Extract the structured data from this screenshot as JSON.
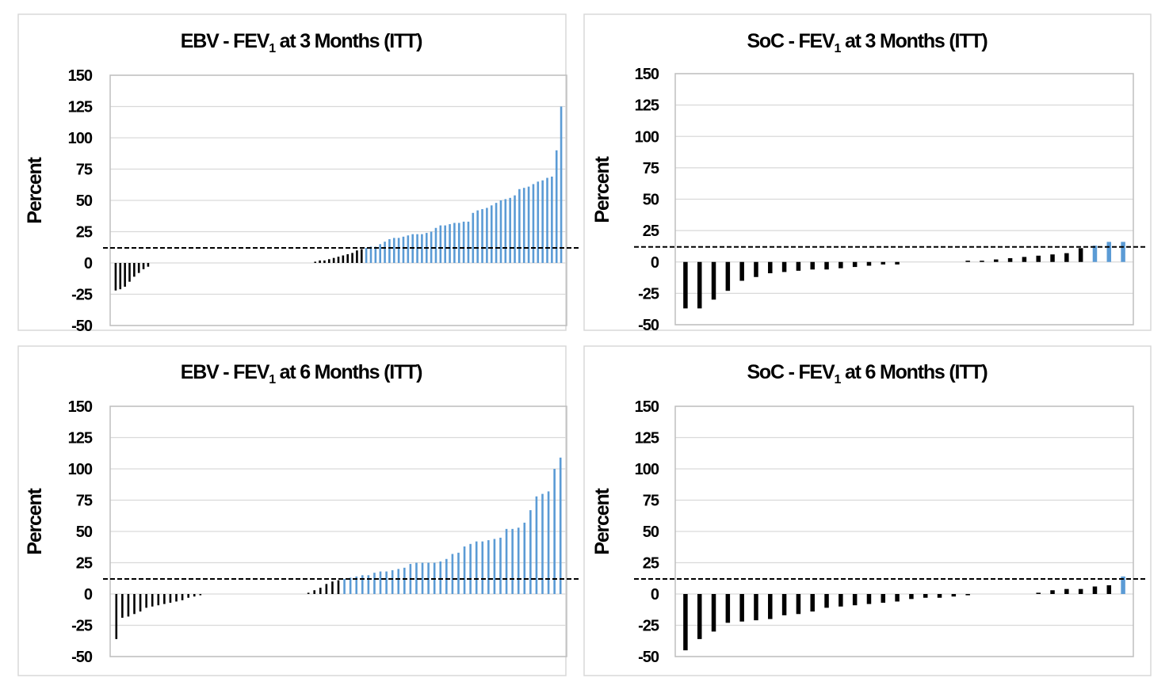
{
  "colors": {
    "responder": "#5b9bd5",
    "non_responder": "#000000",
    "grid": "#d9d9d9",
    "frame": "#bfbfbf"
  },
  "chart_data": [
    {
      "type": "bar",
      "title_main": "EBV - FEV",
      "title_sub": "1",
      "title_rest": " at 3 Months (ITT)",
      "ylabel": "Percent",
      "ylim": [
        -50,
        150
      ],
      "yticks": [
        150,
        125,
        100,
        75,
        50,
        25,
        0,
        -25,
        -50
      ],
      "threshold": 12,
      "values": [
        -22,
        -21,
        -19,
        -15,
        -11,
        -8,
        -5,
        -3,
        0,
        0,
        0,
        0,
        0,
        0,
        0,
        0,
        0,
        0,
        0,
        0,
        0,
        0,
        0,
        0,
        0,
        0,
        0,
        0,
        0,
        0,
        0,
        0,
        0,
        0,
        0,
        0,
        0,
        0,
        0,
        0,
        0,
        0,
        0,
        1,
        2,
        2,
        3,
        4,
        5,
        6,
        7,
        8,
        10,
        11,
        12,
        13,
        13,
        15,
        17,
        19,
        20,
        20,
        21,
        22,
        23,
        23,
        23,
        24,
        25,
        28,
        30,
        30,
        31,
        32,
        32,
        33,
        33,
        40,
        42,
        43,
        44,
        46,
        48,
        50,
        51,
        52,
        54,
        59,
        60,
        61,
        63,
        65,
        66,
        68,
        69,
        90,
        125
      ]
    },
    {
      "type": "bar",
      "title_main": "SoC - FEV",
      "title_sub": "1",
      "title_rest": " at 3 Months (ITT)",
      "ylabel": "Percent",
      "ylim": [
        -50,
        150
      ],
      "yticks": [
        150,
        125,
        100,
        75,
        50,
        25,
        0,
        -25,
        -50
      ],
      "threshold": 12,
      "values": [
        -37,
        -37,
        -30,
        -23,
        -15,
        -12,
        -9,
        -8,
        -7,
        -6,
        -6,
        -5,
        -4,
        -3,
        -2,
        -2,
        0,
        0,
        0,
        0,
        1,
        1,
        2,
        3,
        4,
        5,
        6,
        7,
        11,
        13,
        16,
        16
      ]
    },
    {
      "type": "bar",
      "title_main": "EBV - FEV",
      "title_sub": "1",
      "title_rest": " at 6 Months (ITT)",
      "ylabel": "Percent",
      "ylim": [
        -50,
        150
      ],
      "yticks": [
        150,
        125,
        100,
        75,
        50,
        25,
        0,
        -25,
        -50
      ],
      "threshold": 12,
      "values": [
        -36,
        -19,
        -18,
        -16,
        -14,
        -11,
        -10,
        -9,
        -8,
        -7,
        -6,
        -5,
        -3,
        -2,
        -1,
        0,
        0,
        0,
        0,
        0,
        0,
        0,
        0,
        0,
        0,
        0,
        0,
        0,
        0,
        0,
        0,
        0,
        1,
        3,
        5,
        8,
        10,
        11,
        12,
        13,
        14,
        15,
        15,
        17,
        18,
        18,
        19,
        20,
        21,
        24,
        25,
        25,
        25,
        25,
        26,
        28,
        32,
        33,
        38,
        40,
        42,
        42,
        43,
        44,
        45,
        52,
        52,
        53,
        57,
        67,
        78,
        80,
        82,
        100,
        109
      ]
    },
    {
      "type": "bar",
      "title_main": "SoC - FEV",
      "title_sub": "1",
      "title_rest": " at 6 Months (ITT)",
      "ylabel": "Percent",
      "ylim": [
        -50,
        150
      ],
      "yticks": [
        150,
        125,
        100,
        75,
        50,
        25,
        0,
        -25,
        -50
      ],
      "threshold": 12,
      "values": [
        -45,
        -36,
        -30,
        -23,
        -22,
        -21,
        -20,
        -17,
        -16,
        -14,
        -11,
        -10,
        -9,
        -8,
        -7,
        -6,
        -4,
        -3,
        -3,
        -2,
        -1,
        0,
        0,
        0,
        0,
        1,
        3,
        4,
        4,
        6,
        7,
        14
      ]
    }
  ]
}
